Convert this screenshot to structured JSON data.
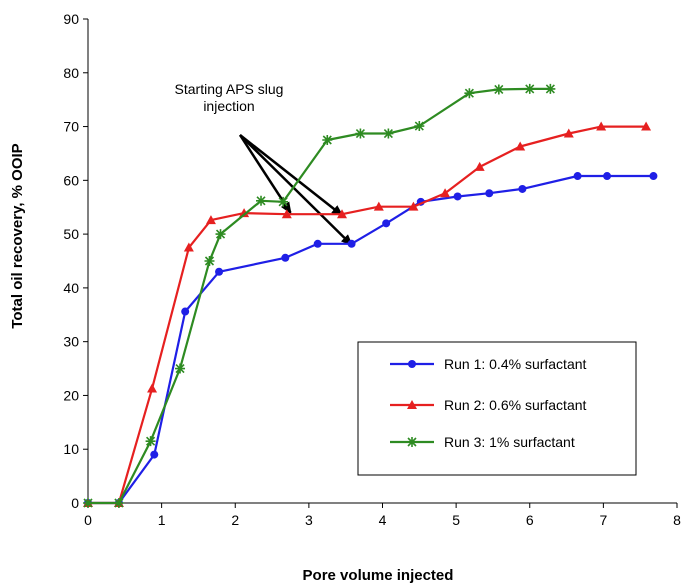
{
  "chart_data": {
    "type": "line",
    "xlabel": "Pore volume injected",
    "ylabel": "Total oil recovery, % OOIP",
    "xlim": [
      0,
      8
    ],
    "ylim": [
      0,
      90
    ],
    "xticks": [
      0,
      1,
      2,
      3,
      4,
      5,
      6,
      7,
      8
    ],
    "yticks": [
      0,
      10,
      20,
      30,
      40,
      50,
      60,
      70,
      80,
      90
    ],
    "grid": false,
    "legend_position": "bottom-right",
    "annotation": {
      "text_lines": [
        "Starting APS slug",
        "injection"
      ],
      "arrow_targets": [
        {
          "x": 2.75,
          "y": 54.0
        },
        {
          "x": 3.58,
          "y": 48.0
        },
        {
          "x": 3.45,
          "y": 53.5
        }
      ]
    },
    "series": [
      {
        "name": "Run 1: 0.4% surfactant",
        "color": "#1f1fe6",
        "marker": "circle",
        "points": [
          [
            0.0,
            0.0
          ],
          [
            0.42,
            0.0
          ],
          [
            0.9,
            9.0
          ],
          [
            1.32,
            35.6
          ],
          [
            1.78,
            43.0
          ],
          [
            2.68,
            45.6
          ],
          [
            3.12,
            48.2
          ],
          [
            3.58,
            48.2
          ],
          [
            4.05,
            52.0
          ],
          [
            4.52,
            56.0
          ],
          [
            5.02,
            57.0
          ],
          [
            5.45,
            57.6
          ],
          [
            5.9,
            58.4
          ],
          [
            6.65,
            60.8
          ],
          [
            7.05,
            60.8
          ],
          [
            7.68,
            60.8
          ]
        ]
      },
      {
        "name": "Run 2: 0.6% surfactant",
        "color": "#e62020",
        "marker": "triangle",
        "points": [
          [
            0.0,
            0.0
          ],
          [
            0.42,
            0.0
          ],
          [
            0.87,
            21.3
          ],
          [
            1.37,
            47.5
          ],
          [
            1.67,
            52.6
          ],
          [
            2.12,
            53.9
          ],
          [
            2.7,
            53.7
          ],
          [
            3.45,
            53.7
          ],
          [
            3.95,
            55.1
          ],
          [
            4.42,
            55.1
          ],
          [
            4.85,
            57.6
          ],
          [
            5.32,
            62.5
          ],
          [
            5.87,
            66.3
          ],
          [
            6.53,
            68.7
          ],
          [
            6.97,
            70.0
          ],
          [
            7.58,
            70.0
          ]
        ]
      },
      {
        "name": "Run 3: 1% surfactant",
        "color": "#2e8b22",
        "marker": "star",
        "points": [
          [
            0.0,
            0.0
          ],
          [
            0.42,
            0.0
          ],
          [
            0.85,
            11.5
          ],
          [
            1.25,
            25.0
          ],
          [
            1.65,
            45.0
          ],
          [
            1.8,
            50.0
          ],
          [
            2.35,
            56.2
          ],
          [
            2.65,
            56.0
          ],
          [
            3.25,
            67.5
          ],
          [
            3.7,
            68.7
          ],
          [
            4.08,
            68.7
          ],
          [
            4.5,
            70.1
          ],
          [
            5.18,
            76.2
          ],
          [
            5.58,
            76.9
          ],
          [
            6.0,
            77.0
          ],
          [
            6.28,
            77.0
          ]
        ]
      }
    ]
  }
}
